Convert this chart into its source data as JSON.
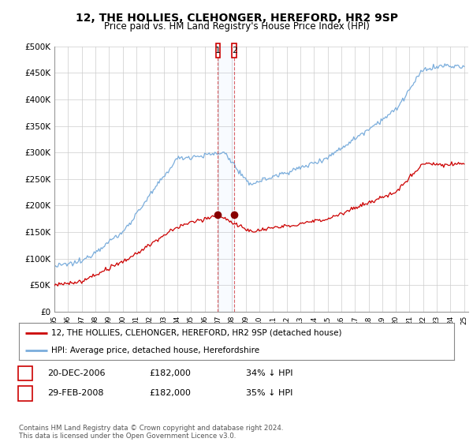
{
  "title": "12, THE HOLLIES, CLEHONGER, HEREFORD, HR2 9SP",
  "subtitle": "Price paid vs. HM Land Registry's House Price Index (HPI)",
  "title_fontsize": 10,
  "subtitle_fontsize": 8.5,
  "ylim": [
    0,
    500000
  ],
  "yticks": [
    0,
    50000,
    100000,
    150000,
    200000,
    250000,
    300000,
    350000,
    400000,
    450000,
    500000
  ],
  "ytick_labels": [
    "£0",
    "£50K",
    "£100K",
    "£150K",
    "£200K",
    "£250K",
    "£300K",
    "£350K",
    "£400K",
    "£450K",
    "£500K"
  ],
  "hpi_color": "#7aaddc",
  "price_color": "#cc0000",
  "marker_color": "#880000",
  "vline_color": "#cc0000",
  "transaction1_date": 2006.97,
  "transaction2_date": 2008.17,
  "legend_line1": "12, THE HOLLIES, CLEHONGER, HEREFORD, HR2 9SP (detached house)",
  "legend_line2": "HPI: Average price, detached house, Herefordshire",
  "table_row1": [
    "1",
    "20-DEC-2006",
    "£182,000",
    "34% ↓ HPI"
  ],
  "table_row2": [
    "2",
    "29-FEB-2008",
    "£182,000",
    "35% ↓ HPI"
  ],
  "footnote": "Contains HM Land Registry data © Crown copyright and database right 2024.\nThis data is licensed under the Open Government Licence v3.0.",
  "background_color": "#ffffff",
  "grid_color": "#cccccc"
}
